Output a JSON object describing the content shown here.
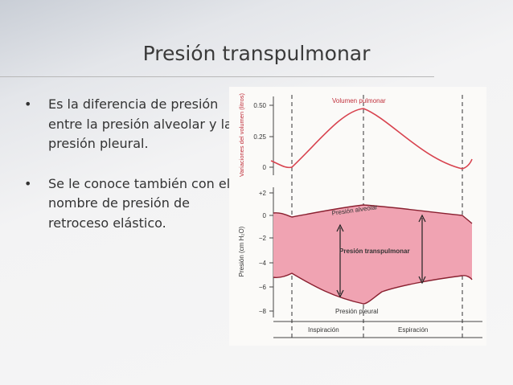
{
  "header": {
    "title": "Presión transpulmonar"
  },
  "bullets": [
    "Es la diferencia de presión entre la presión alveolar y la presión pleural.",
    "Se le conoce también con el nombre de presión de retroceso elástico."
  ],
  "figure": {
    "top_axis_label": "Variaciones del volumen (litros)",
    "top_ticks": [
      "0.50",
      "0.25",
      "0"
    ],
    "bottom_axis_label": "Presión (cm H₂O)",
    "bottom_ticks": [
      "+2",
      "0",
      "−2",
      "−4",
      "−6",
      "−8"
    ],
    "labels": {
      "volume": "Volumen pulmonar",
      "alveolar": "Presión alveolar",
      "transpulmonary": "Presión transpulmonar",
      "pleural": "Presión pleural",
      "inspiration": "Inspiración",
      "expiration": "Espiración"
    }
  }
}
